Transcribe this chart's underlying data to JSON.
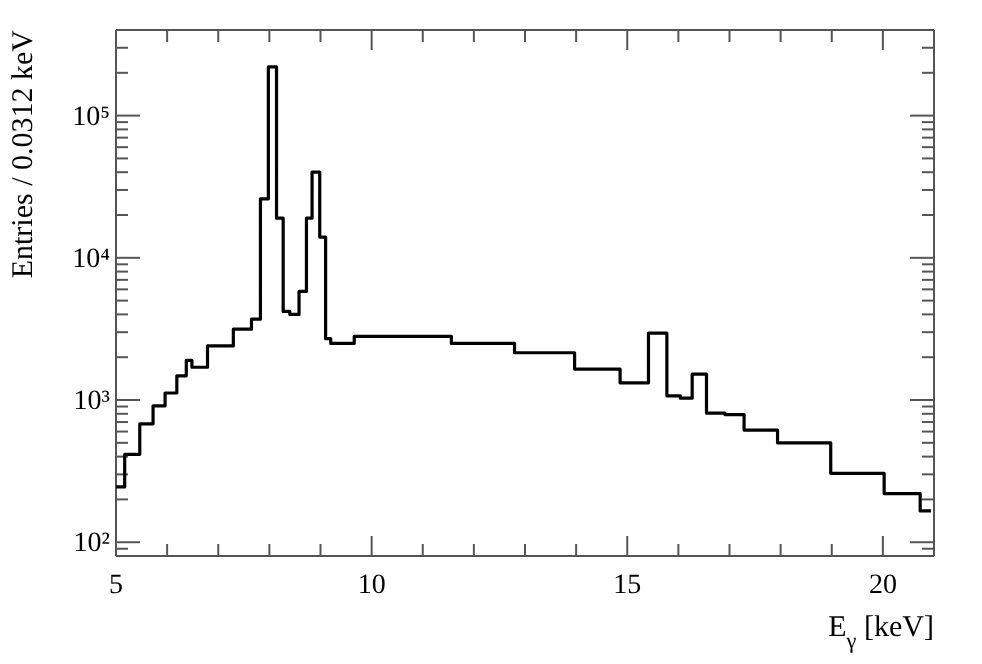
{
  "chart_data": {
    "type": "step",
    "xlabel": "E$_{γ}$ [keV]",
    "ylabel": "Entries / 0.0312 keV",
    "log": "y",
    "xlim": [
      5,
      21
    ],
    "ylim": [
      80,
      400000
    ],
    "xticks": [
      5,
      {
        "value": 6,
        "label": null
      },
      {
        "value": 7,
        "label": null
      },
      {
        "value": 8,
        "label": null
      },
      {
        "value": 9,
        "label": null
      },
      10,
      {
        "value": 11,
        "label": null
      },
      {
        "value": 12,
        "label": null
      },
      {
        "value": 13,
        "label": null
      },
      {
        "value": 14,
        "label": null
      },
      15,
      {
        "value": 16,
        "label": null
      },
      {
        "value": 17,
        "label": null
      },
      {
        "value": 18,
        "label": null
      },
      {
        "value": 19,
        "label": null
      },
      20,
      {
        "value": 21,
        "label": null
      }
    ],
    "yticks": [
      {
        "value": 90,
        "label": null
      },
      {
        "value": 100,
        "label": "10²"
      },
      {
        "value": 200,
        "label": null
      },
      {
        "value": 300,
        "label": null
      },
      {
        "value": 400,
        "label": null
      },
      {
        "value": 500,
        "label": null
      },
      {
        "value": 600,
        "label": null
      },
      {
        "value": 700,
        "label": null
      },
      {
        "value": 800,
        "label": null
      },
      {
        "value": 900,
        "label": null
      },
      {
        "value": 1000,
        "label": "10³"
      },
      {
        "value": 2000,
        "label": null
      },
      {
        "value": 3000,
        "label": null
      },
      {
        "value": 4000,
        "label": null
      },
      {
        "value": 5000,
        "label": null
      },
      {
        "value": 6000,
        "label": null
      },
      {
        "value": 7000,
        "label": null
      },
      {
        "value": 8000,
        "label": null
      },
      {
        "value": 9000,
        "label": null
      },
      {
        "value": 10000,
        "label": "10⁴"
      },
      {
        "value": 20000,
        "label": null
      },
      {
        "value": 30000,
        "label": null
      },
      {
        "value": 40000,
        "label": null
      },
      {
        "value": 50000,
        "label": null
      },
      {
        "value": 60000,
        "label": null
      },
      {
        "value": 70000,
        "label": null
      },
      {
        "value": 80000,
        "label": null
      },
      {
        "value": 90000,
        "label": null
      },
      {
        "value": 100000,
        "label": "10⁵"
      },
      {
        "value": 200000,
        "label": null
      },
      {
        "value": 300000,
        "label": null
      },
      {
        "value": 400000,
        "label": null
      }
    ],
    "grid": false,
    "marker": "none",
    "line_style": "solid",
    "series": [
      {
        "color": "#000000",
        "x": [
          5.0,
          5.34,
          5.59,
          5.86,
          6.06,
          6.32,
          6.43,
          6.54,
          7.04,
          7.55,
          7.75,
          7.9,
          8.06,
          8.22,
          8.32,
          8.48,
          8.68,
          8.77,
          8.9,
          9.07,
          9.13,
          9.27,
          10.05,
          10.97,
          12.15,
          13.44,
          14.5,
          15.22,
          15.61,
          15.94,
          16.14,
          16.4,
          16.7,
          17.12,
          17.45,
          18.43,
          19.53,
          20.52,
          20.94
        ],
        "values": [
          245,
          415,
          680,
          910,
          1120,
          1480,
          1900,
          1700,
          2400,
          3150,
          3700,
          26000,
          220000,
          19000,
          4200,
          4000,
          5800,
          19000,
          40000,
          14000,
          2700,
          2500,
          2800,
          2800,
          2500,
          2150,
          1650,
          1320,
          2950,
          1070,
          1030,
          1520,
          810,
          790,
          615,
          500,
          305,
          220,
          166
        ]
      }
    ]
  }
}
